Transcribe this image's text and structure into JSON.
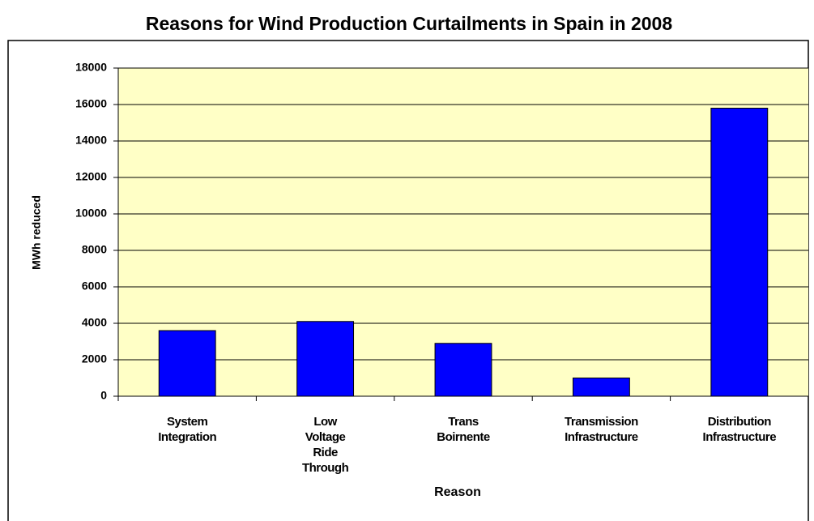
{
  "chart_data": {
    "type": "bar",
    "title": "Reasons for Wind Production Curtailments in Spain in 2008",
    "x_label": "Reason",
    "y_label": "MWh reduced",
    "categories": [
      "System Integration",
      "Low Voltage Ride Through",
      "Trans Boirnente",
      "Transmission Infrastructure",
      "Distribution Infrastructure"
    ],
    "values": [
      3600,
      4100,
      2900,
      1000,
      15800
    ],
    "color": "#0000ff",
    "ylim": [
      0,
      18000
    ],
    "yticks": [
      0,
      2000,
      4000,
      6000,
      8000,
      10000,
      12000,
      14000,
      16000,
      18000
    ],
    "grid": true
  }
}
